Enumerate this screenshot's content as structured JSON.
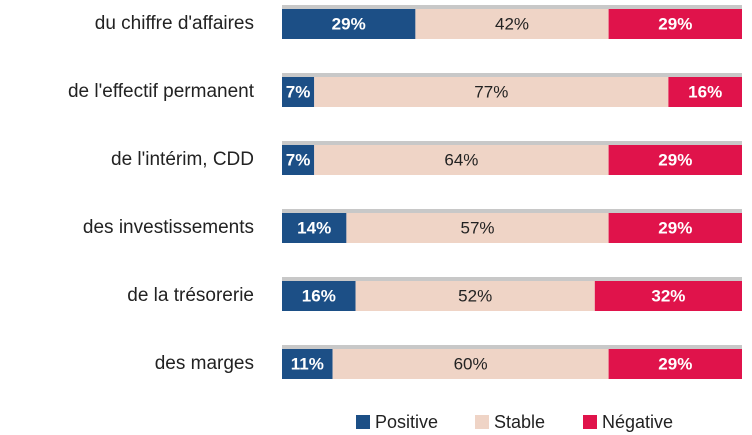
{
  "chart_data": {
    "type": "bar",
    "orientation": "horizontal",
    "stacked": true,
    "categories": [
      "du chiffre d'affaires",
      "de l'effectif permanent",
      "de l'intérim, CDD",
      "des investissements",
      "de la trésorerie",
      "des marges"
    ],
    "series": [
      {
        "name": "Positive",
        "color": "#1c4f86",
        "values": [
          29,
          7,
          7,
          14,
          16,
          11
        ],
        "value_labels": [
          "29%",
          "7%",
          "7%",
          "14%",
          "16%",
          "11%"
        ],
        "label_color": "#ffffff"
      },
      {
        "name": "Stable",
        "color": "#efd4c6",
        "values": [
          42,
          77,
          64,
          57,
          52,
          60
        ],
        "value_labels": [
          "42%",
          "77%",
          "64%",
          "57%",
          "52%",
          "60%"
        ],
        "label_color": "#222222"
      },
      {
        "name": "Négative",
        "color": "#e0134b",
        "values": [
          29,
          16,
          29,
          29,
          32,
          29
        ],
        "value_labels": [
          "29%",
          "16%",
          "29%",
          "29%",
          "32%",
          "29%"
        ],
        "label_color": "#ffffff"
      }
    ],
    "legend": "bottom"
  }
}
